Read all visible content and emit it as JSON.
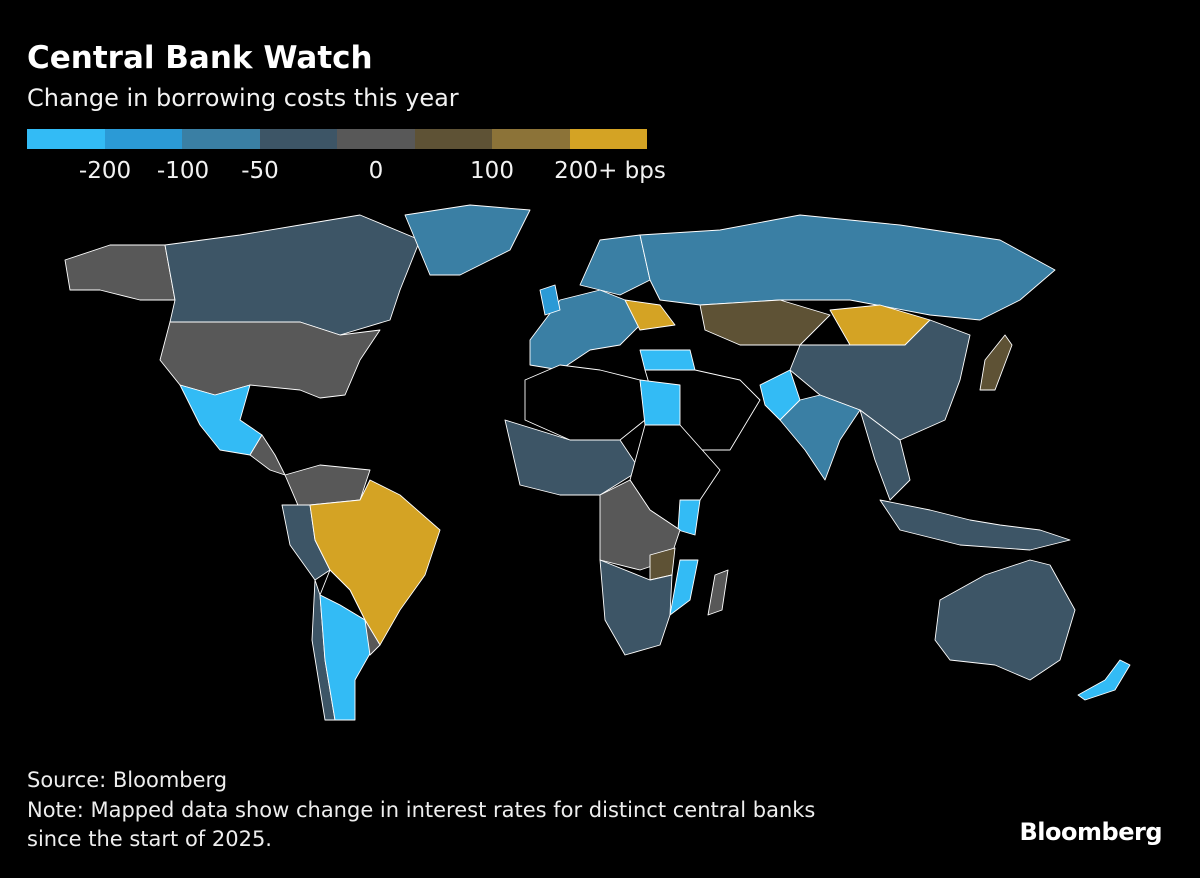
{
  "header": {
    "title": "Central Bank Watch",
    "subtitle": "Change in borrowing costs this year"
  },
  "legend": {
    "colors": [
      "#33bbf5",
      "#2b9ad6",
      "#3a7fa4",
      "#3d5566",
      "#585858",
      "#5e5235",
      "#8c7338",
      "#d4a324"
    ],
    "labels": [
      "-200",
      "-100",
      "-50",
      "0",
      "100",
      "200+ bps"
    ]
  },
  "footer": {
    "source": "Source: Bloomberg",
    "note_line1": "Note: Mapped data show change in interest rates for distinct central banks",
    "note_line2": "since the start of 2025.",
    "logo": "Bloomberg"
  }
}
